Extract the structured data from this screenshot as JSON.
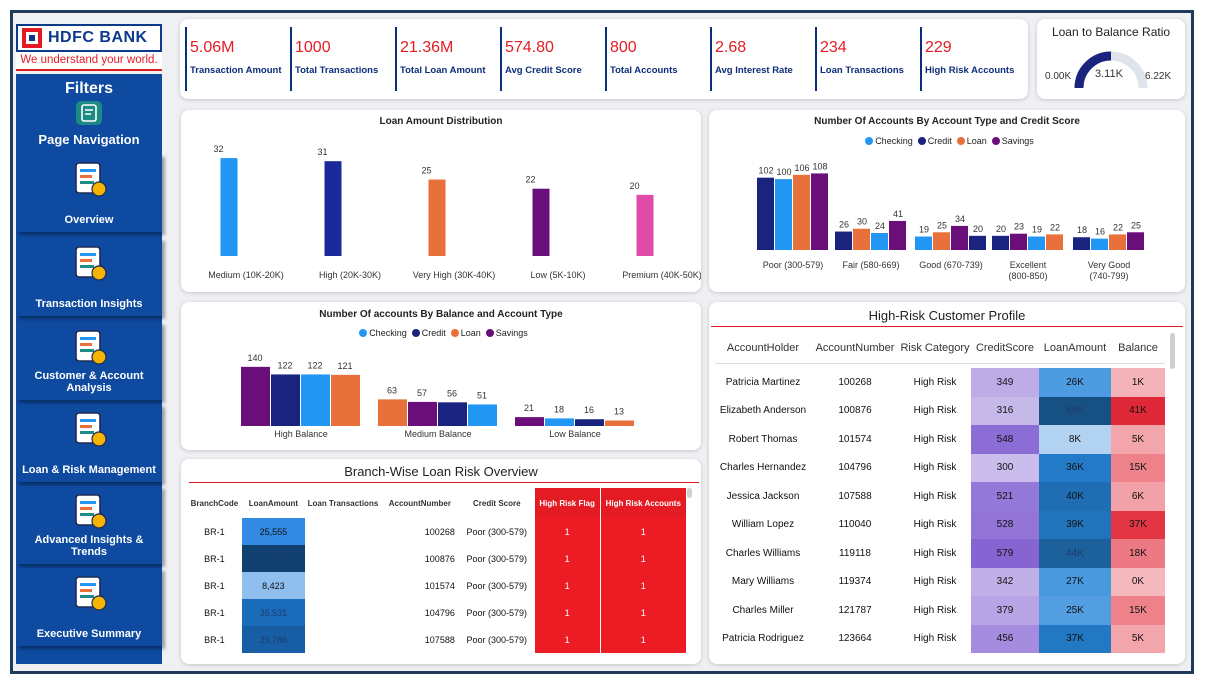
{
  "logo": {
    "name": "HDFC BANK",
    "tagline": "We understand your world."
  },
  "sidebar": {
    "filters_label": "Filters",
    "page_nav_label": "Page Navigation",
    "items": [
      {
        "label": "Overview",
        "icon": "overview-chart-icon"
      },
      {
        "label": "Transaction Insights",
        "icon": "transaction-invoice-icon"
      },
      {
        "label": "Customer & Account Analysis",
        "icon": "customer-analysis-icon"
      },
      {
        "label": "Loan & Risk Management",
        "icon": "loan-hand-icon"
      },
      {
        "label": "Advanced Insights & Trends",
        "icon": "magnifier-chart-icon"
      },
      {
        "label": "Executive Summary",
        "icon": "report-icon"
      }
    ]
  },
  "kpis": [
    {
      "value": "5.06M",
      "label": "Transaction Amount"
    },
    {
      "value": "1000",
      "label": "Total Transactions"
    },
    {
      "value": "21.36M",
      "label": "Total Loan Amount"
    },
    {
      "value": "574.80",
      "label": "Avg Credit Score"
    },
    {
      "value": "800",
      "label": "Total Accounts"
    },
    {
      "value": "2.68",
      "label": "Avg Interest Rate"
    },
    {
      "value": "234",
      "label": "Loan Transactions"
    },
    {
      "value": "229",
      "label": "High Risk Accounts"
    }
  ],
  "gauge": {
    "title": "Loan to Balance Ratio",
    "min_label": "0.00K",
    "value_label": "3.11K",
    "max_label": "6.22K",
    "fraction": 0.5
  },
  "colors": {
    "checking": "#2196f3",
    "credit": "#1a237e",
    "loan": "#e8703a",
    "savings": "#6a0f7a",
    "accent": "#e41b23"
  },
  "chart_data": [
    {
      "type": "bar",
      "title": "Loan Amount Distribution",
      "categories": [
        "Medium (10K-20K)",
        "High (20K-30K)",
        "Very High (30K-40K)",
        "Low (5K-10K)",
        "Premium (40K-50K)"
      ],
      "values": [
        32,
        31,
        25,
        22,
        20
      ],
      "colors": [
        "#2196f3",
        "#1a2a9a",
        "#e8703a",
        "#6a0f7a",
        "#e04aa8"
      ],
      "ylim": [
        0,
        34
      ]
    },
    {
      "type": "bar",
      "title": "Number Of Accounts By Account Type and Credit Score",
      "categories": [
        "Poor (300-579)",
        "Fair (580-669)",
        "Good (670-739)",
        "Excellent (800-850)",
        "Very Good (740-799)"
      ],
      "series": [
        {
          "name": "Checking",
          "values": [
            100,
            24,
            19,
            19,
            16
          ]
        },
        {
          "name": "Credit",
          "values": [
            102,
            26,
            20,
            20,
            18
          ]
        },
        {
          "name": "Loan",
          "values": [
            106,
            30,
            25,
            22,
            22
          ]
        },
        {
          "name": "Savings",
          "values": [
            108,
            41,
            34,
            23,
            25
          ]
        }
      ],
      "bar_order": [
        [
          "Credit",
          "Checking",
          "Loan",
          "Savings"
        ],
        [
          "Credit",
          "Loan",
          "Checking",
          "Savings"
        ],
        [
          "Checking",
          "Loan",
          "Savings",
          "Credit"
        ],
        [
          "Credit",
          "Savings",
          "Checking",
          "Loan"
        ],
        [
          "Credit",
          "Checking",
          "Loan",
          "Savings"
        ]
      ],
      "ylim": [
        0,
        110
      ]
    },
    {
      "type": "bar",
      "title": "Number Of accounts By Balance and Account Type",
      "categories": [
        "High Balance",
        "Medium Balance",
        "Low Balance"
      ],
      "bars": [
        [
          {
            "name": "Savings",
            "value": 140
          },
          {
            "name": "Credit",
            "value": 122
          },
          {
            "name": "Checking",
            "value": 122
          },
          {
            "name": "Loan",
            "value": 121
          }
        ],
        [
          {
            "name": "Loan",
            "value": 63
          },
          {
            "name": "Savings",
            "value": 57
          },
          {
            "name": "Credit",
            "value": 56
          },
          {
            "name": "Checking",
            "value": 51
          }
        ],
        [
          {
            "name": "Savings",
            "value": 21
          },
          {
            "name": "Checking",
            "value": 18
          },
          {
            "name": "Credit",
            "value": 16
          },
          {
            "name": "Loan",
            "value": 13
          }
        ]
      ],
      "legend": [
        "Checking",
        "Credit",
        "Loan",
        "Savings"
      ],
      "ylim": [
        0,
        142
      ]
    }
  ],
  "branch": {
    "title": "Branch-Wise Loan Risk Overview",
    "columns": [
      "BranchCode",
      "LoanAmount",
      "Loan Transactions",
      "AccountNumber",
      "Credit Score",
      "High Risk Flag",
      "High Risk Accounts"
    ],
    "rows": [
      {
        "branch": "BR-1",
        "loan": "25,555",
        "loan_num": 25555,
        "txn": "",
        "account": "100268",
        "credit": "Poor (300-579)",
        "flag": "1",
        "accounts": "1"
      },
      {
        "branch": "BR-1",
        "loan": "49,395",
        "loan_num": 49395,
        "txn": "",
        "account": "100876",
        "credit": "Poor (300-579)",
        "flag": "1",
        "accounts": "1"
      },
      {
        "branch": "BR-1",
        "loan": "8,423",
        "loan_num": 8423,
        "txn": "",
        "account": "101574",
        "credit": "Poor (300-579)",
        "flag": "1",
        "accounts": "1"
      },
      {
        "branch": "BR-1",
        "loan": "35,531",
        "loan_num": 35531,
        "txn": "",
        "account": "104796",
        "credit": "Poor (300-579)",
        "flag": "1",
        "accounts": "1"
      },
      {
        "branch": "BR-1",
        "loan": "39,786",
        "loan_num": 39786,
        "txn": "",
        "account": "107588",
        "credit": "Poor (300-579)",
        "flag": "1",
        "accounts": "1"
      }
    ]
  },
  "risk_profile": {
    "title": "High-Risk Customer Profile",
    "columns": [
      "AccountHolder",
      "AccountNumber",
      "Risk Category",
      "CreditScore",
      "LoanAmount",
      "Balance"
    ],
    "rows": [
      {
        "name": "Patricia Martinez",
        "account": "100268",
        "risk": "High Risk",
        "score": "349",
        "score_num": 349,
        "loan": "26K",
        "loan_num": 26,
        "balance": "1K",
        "balance_num": 1
      },
      {
        "name": "Elizabeth Anderson",
        "account": "100876",
        "risk": "High Risk",
        "score": "316",
        "score_num": 316,
        "loan": "49K",
        "loan_num": 49,
        "balance": "41K",
        "balance_num": 41
      },
      {
        "name": "Robert Thomas",
        "account": "101574",
        "risk": "High Risk",
        "score": "548",
        "score_num": 548,
        "loan": "8K",
        "loan_num": 8,
        "balance": "5K",
        "balance_num": 5
      },
      {
        "name": "Charles Hernandez",
        "account": "104796",
        "risk": "High Risk",
        "score": "300",
        "score_num": 300,
        "loan": "36K",
        "loan_num": 36,
        "balance": "15K",
        "balance_num": 15
      },
      {
        "name": "Jessica Jackson",
        "account": "107588",
        "risk": "High Risk",
        "score": "521",
        "score_num": 521,
        "loan": "40K",
        "loan_num": 40,
        "balance": "6K",
        "balance_num": 6
      },
      {
        "name": "William Lopez",
        "account": "110040",
        "risk": "High Risk",
        "score": "528",
        "score_num": 528,
        "loan": "39K",
        "loan_num": 39,
        "balance": "37K",
        "balance_num": 37
      },
      {
        "name": "Charles Williams",
        "account": "119118",
        "risk": "High Risk",
        "score": "579",
        "score_num": 579,
        "loan": "44K",
        "loan_num": 44,
        "balance": "18K",
        "balance_num": 18
      },
      {
        "name": "Mary Williams",
        "account": "119374",
        "risk": "High Risk",
        "score": "342",
        "score_num": 342,
        "loan": "27K",
        "loan_num": 27,
        "balance": "0K",
        "balance_num": 0
      },
      {
        "name": "Charles Miller",
        "account": "121787",
        "risk": "High Risk",
        "score": "379",
        "score_num": 379,
        "loan": "25K",
        "loan_num": 25,
        "balance": "15K",
        "balance_num": 15
      },
      {
        "name": "Patricia Rodriguez",
        "account": "123664",
        "risk": "High Risk",
        "score": "456",
        "score_num": 456,
        "loan": "37K",
        "loan_num": 37,
        "balance": "5K",
        "balance_num": 5
      }
    ]
  }
}
